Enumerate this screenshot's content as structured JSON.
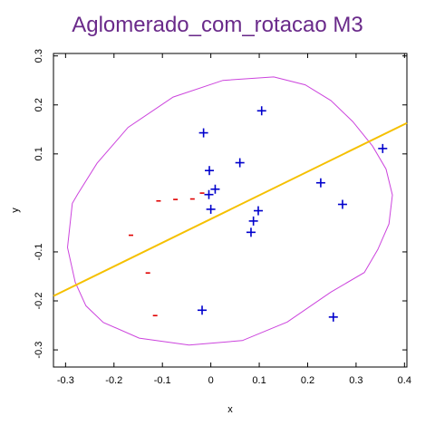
{
  "chart_data": {
    "type": "scatter",
    "title": "Aglomerado_com_rotacao M3",
    "xlabel": "x",
    "ylabel": "y",
    "xlim": [
      -0.325,
      0.405
    ],
    "ylim": [
      -0.335,
      0.305
    ],
    "x_ticks": [
      {
        "value": -0.3,
        "label": "-0.3"
      },
      {
        "value": -0.2,
        "label": "-0.2"
      },
      {
        "value": -0.1,
        "label": "-0.1"
      },
      {
        "value": 0.0,
        "label": "0"
      },
      {
        "value": 0.1,
        "label": "0.1"
      },
      {
        "value": 0.2,
        "label": "0.2"
      },
      {
        "value": 0.3,
        "label": "0.3"
      },
      {
        "value": 0.4,
        "label": "0.4"
      }
    ],
    "y_ticks": [
      {
        "value": 0.3,
        "label": "0.3"
      },
      {
        "value": 0.2,
        "label": "0.2"
      },
      {
        "value": 0.1,
        "label": "0.1"
      },
      {
        "value": -0.1,
        "label": "-0.1"
      },
      {
        "value": -0.2,
        "label": "-0.2"
      },
      {
        "value": -0.3,
        "label": "-0.3"
      }
    ],
    "colors": {
      "title": "#6a2a8a",
      "plus": "#0000cc",
      "minus": "#e00000",
      "ellipse": "#cc44dd",
      "line": "#f5c000",
      "axes": "#000000"
    },
    "series": [
      {
        "marker": "+",
        "points": [
          [
            0.105,
            0.188
          ],
          [
            -0.015,
            0.143
          ],
          [
            -0.003,
            0.066
          ],
          [
            0.06,
            0.082
          ],
          [
            0.227,
            0.041
          ],
          [
            0.009,
            0.028
          ],
          [
            -0.004,
            0.017
          ],
          [
            0.0,
            -0.013
          ],
          [
            0.272,
            -0.003
          ],
          [
            0.098,
            -0.016
          ],
          [
            0.088,
            -0.037
          ],
          [
            0.083,
            -0.06
          ],
          [
            0.355,
            0.111
          ],
          [
            -0.018,
            -0.219
          ],
          [
            0.253,
            -0.233
          ]
        ]
      },
      {
        "marker": "-",
        "points": [
          [
            -0.018,
            0.02
          ],
          [
            -0.038,
            0.008
          ],
          [
            -0.073,
            0.007
          ],
          [
            -0.108,
            0.004
          ],
          [
            -0.165,
            -0.066
          ],
          [
            -0.13,
            -0.143
          ],
          [
            -0.115,
            -0.23
          ]
        ]
      }
    ],
    "ellipse": [
      [
        0.13,
        0.257
      ],
      [
        0.195,
        0.241
      ],
      [
        0.248,
        0.209
      ],
      [
        0.293,
        0.166
      ],
      [
        0.334,
        0.116
      ],
      [
        0.362,
        0.069
      ],
      [
        0.375,
        0.016
      ],
      [
        0.368,
        -0.043
      ],
      [
        0.345,
        -0.095
      ],
      [
        0.317,
        -0.142
      ],
      [
        0.248,
        -0.182
      ],
      [
        0.158,
        -0.243
      ],
      [
        0.065,
        -0.281
      ],
      [
        -0.045,
        -0.29
      ],
      [
        -0.148,
        -0.276
      ],
      [
        -0.222,
        -0.244
      ],
      [
        -0.258,
        -0.21
      ],
      [
        -0.28,
        -0.162
      ],
      [
        -0.296,
        -0.091
      ],
      [
        -0.286,
        -0.001
      ],
      [
        -0.275,
        0.018
      ],
      [
        -0.235,
        0.081
      ],
      [
        -0.171,
        0.154
      ],
      [
        -0.078,
        0.216
      ],
      [
        0.025,
        0.25
      ],
      [
        0.13,
        0.257
      ]
    ],
    "regression_line": [
      [
        -0.325,
        -0.19
      ],
      [
        0.405,
        0.163
      ]
    ]
  }
}
